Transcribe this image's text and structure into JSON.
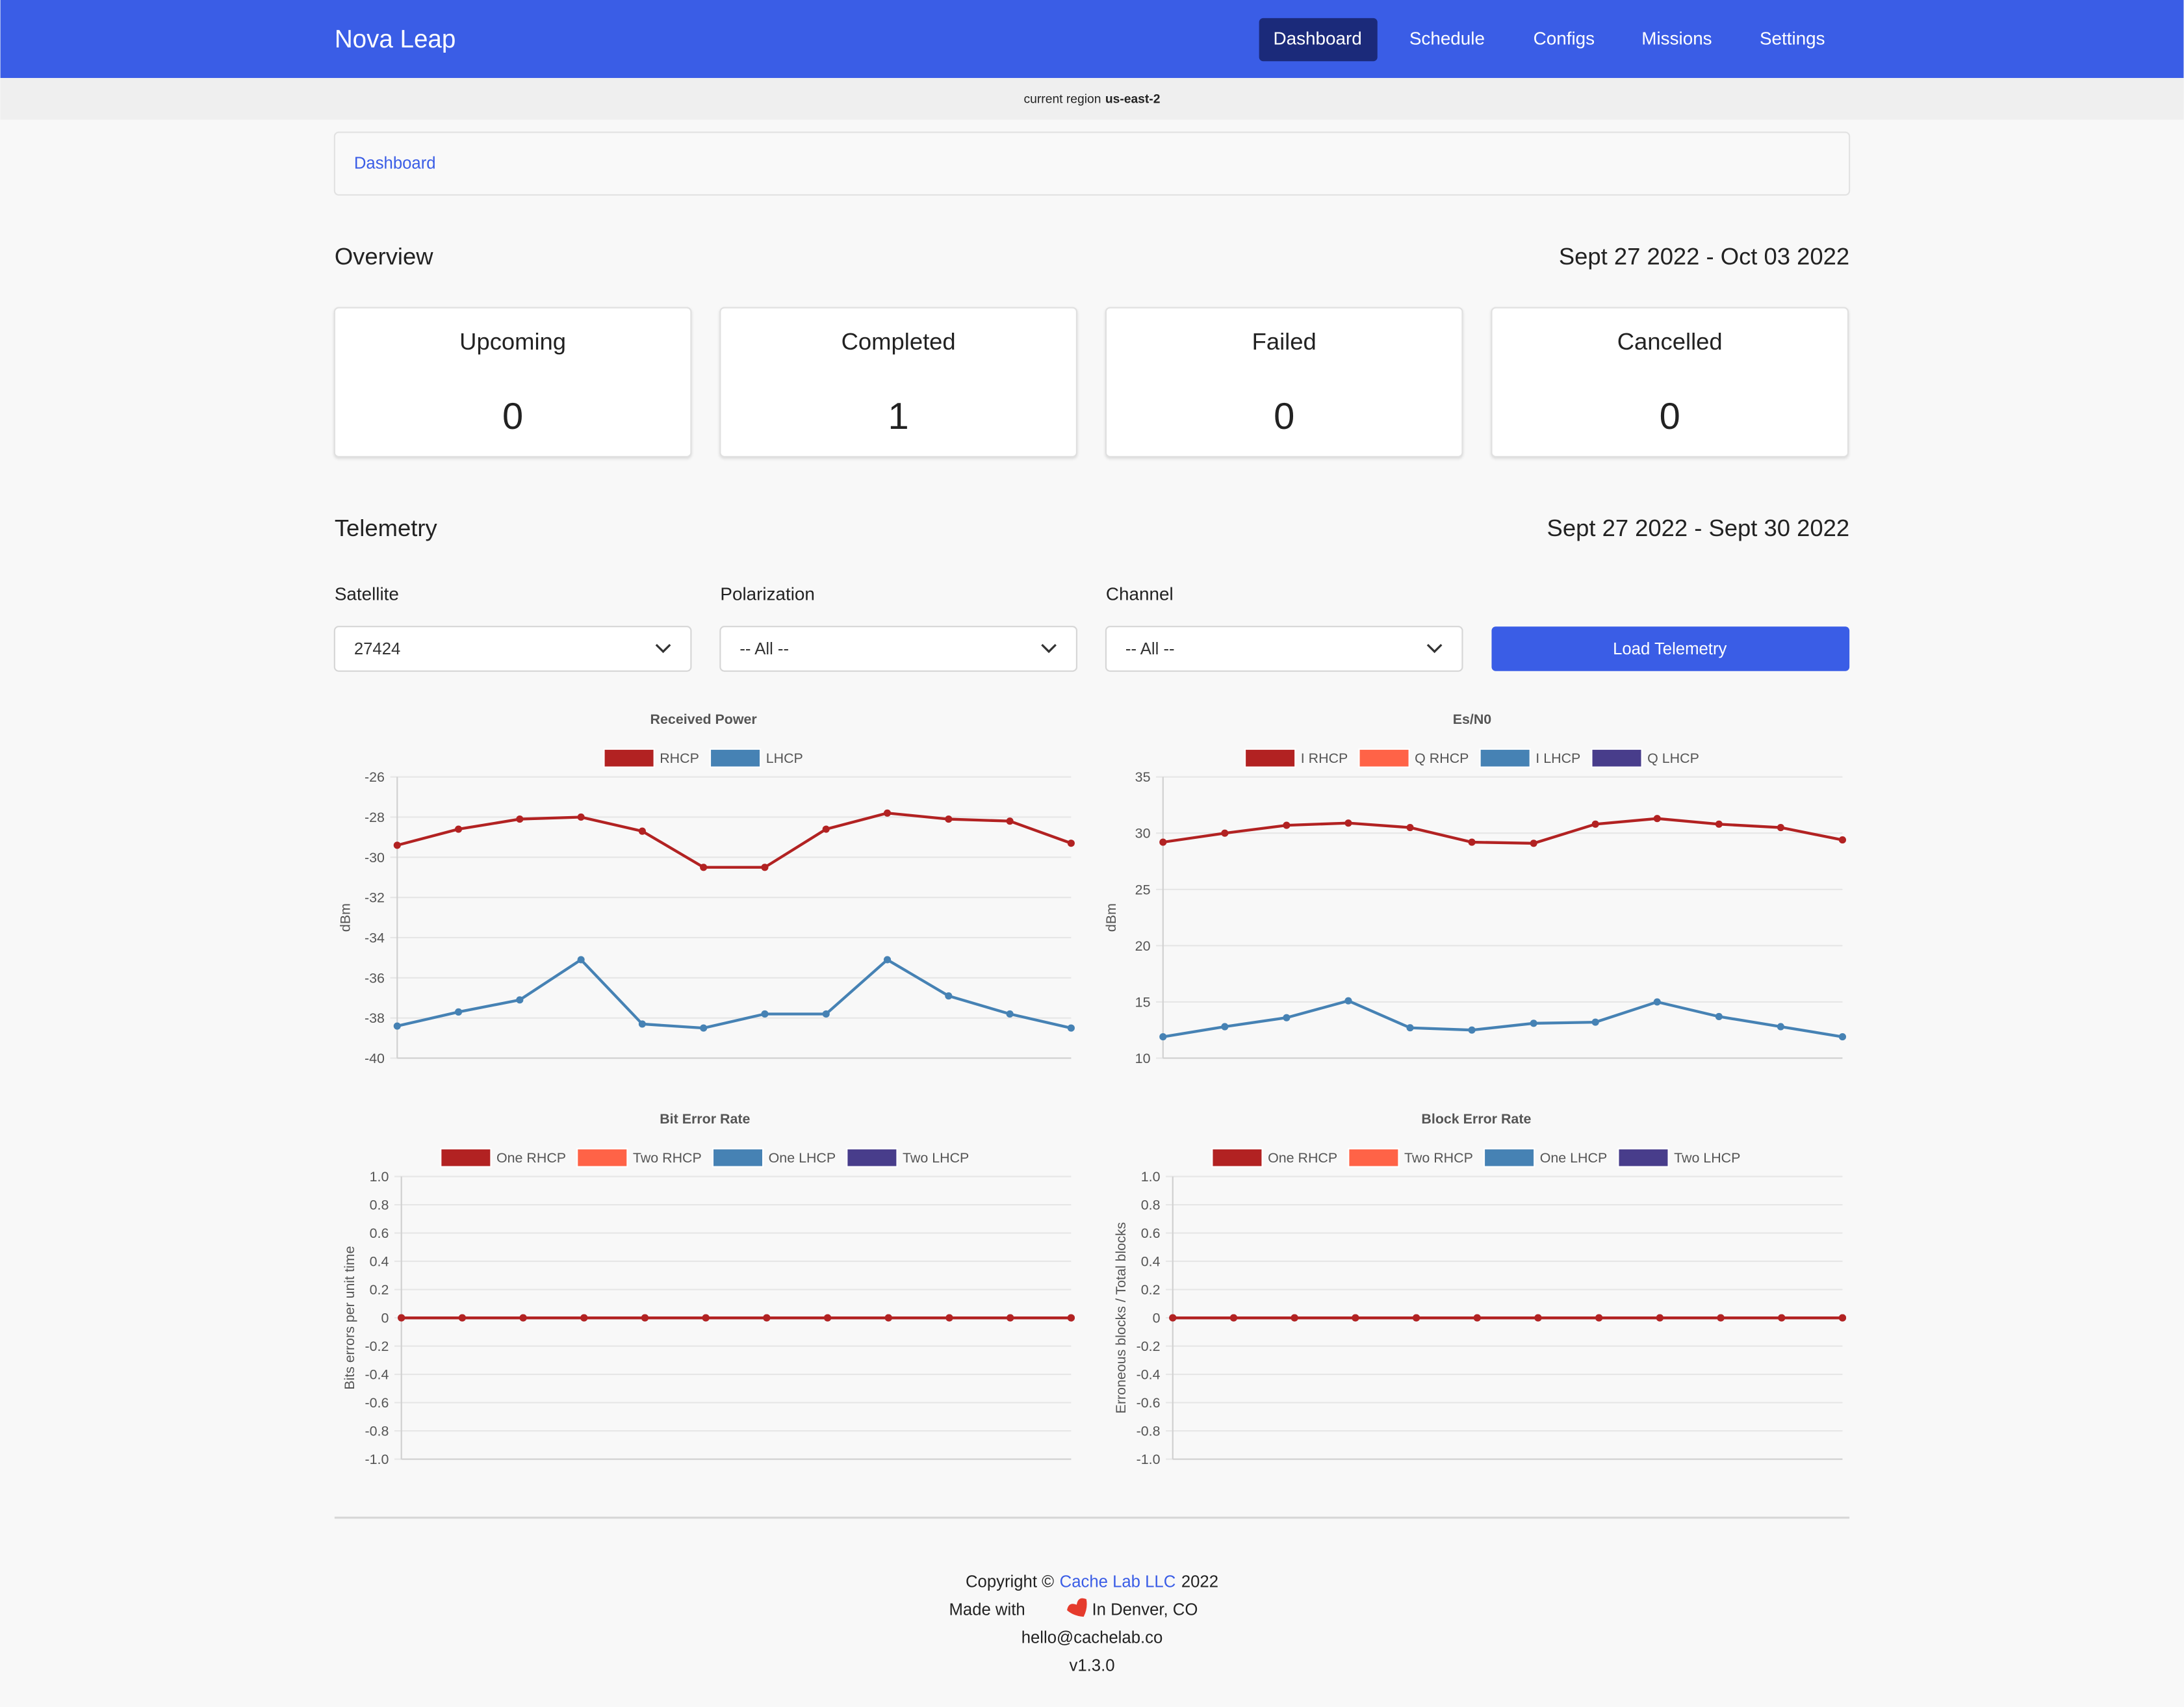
{
  "nav": {
    "brand": "Nova Leap",
    "items": [
      "Dashboard",
      "Schedule",
      "Configs",
      "Missions",
      "Settings"
    ]
  },
  "region": {
    "label": "current region",
    "value": "us-east-2"
  },
  "breadcrumb": "Dashboard",
  "overview": {
    "title": "Overview",
    "range": "Sept 27 2022 - Oct 03 2022",
    "cards": [
      {
        "label": "Upcoming",
        "value": "0"
      },
      {
        "label": "Completed",
        "value": "1"
      },
      {
        "label": "Failed",
        "value": "0"
      },
      {
        "label": "Cancelled",
        "value": "0"
      }
    ]
  },
  "telemetry": {
    "title": "Telemetry",
    "range": "Sept 27 2022 - Sept 30 2022",
    "filters": [
      {
        "label": "Satellite",
        "value": "27424"
      },
      {
        "label": "Polarization",
        "value": "-- All --"
      },
      {
        "label": "Channel",
        "value": "-- All --"
      }
    ],
    "button": "Load Telemetry"
  },
  "chart_data": [
    {
      "type": "line",
      "title": "Received Power",
      "y_label": "dBm",
      "ylim": [
        -40,
        -26
      ],
      "yticks": [
        -26,
        -28,
        -30,
        -32,
        -34,
        -36,
        -38,
        -40
      ],
      "grid": true,
      "series": [
        {
          "name": "RHCP",
          "color": "#b22222",
          "values": [
            -29.4,
            -28.6,
            -28.1,
            -28.0,
            -28.7,
            -30.5,
            -30.5,
            -28.6,
            -27.8,
            -28.1,
            -28.2,
            -29.3
          ]
        },
        {
          "name": "LHCP",
          "color": "#4682b4",
          "values": [
            -38.4,
            -37.7,
            -37.1,
            -35.1,
            -38.3,
            -38.5,
            -37.8,
            -37.8,
            -35.1,
            -36.9,
            -37.8,
            -38.5
          ]
        }
      ]
    },
    {
      "type": "line",
      "title": "Es/N0",
      "y_label": "dBm",
      "ylim": [
        10,
        35
      ],
      "yticks": [
        35,
        30,
        25,
        20,
        15,
        10
      ],
      "grid": true,
      "series": [
        {
          "name": "I RHCP",
          "color": "#b22222",
          "values": [
            29.2,
            30.0,
            30.7,
            30.9,
            30.5,
            29.2,
            29.1,
            30.8,
            31.3,
            30.8,
            30.5,
            29.4
          ]
        },
        {
          "name": "Q RHCP",
          "color": "#ff6347",
          "values": [
            null,
            null,
            null,
            null,
            null,
            null,
            null,
            null,
            null,
            null,
            null,
            null
          ]
        },
        {
          "name": "I LHCP",
          "color": "#4682b4",
          "values": [
            11.9,
            12.8,
            13.6,
            15.1,
            12.7,
            12.5,
            13.1,
            13.2,
            15.0,
            13.7,
            12.8,
            11.9
          ]
        },
        {
          "name": "Q LHCP",
          "color": "#483d8b",
          "values": [
            null,
            null,
            null,
            null,
            null,
            null,
            null,
            null,
            null,
            null,
            null,
            null
          ]
        }
      ]
    },
    {
      "type": "line",
      "title": "Bit Error Rate",
      "y_label": "Bits errors per unit time",
      "ylim": [
        -1,
        1
      ],
      "yticks": [
        {
          "value": 1,
          "label": "1.0"
        },
        0.8,
        0.6,
        0.4,
        0.2,
        0,
        -0.2,
        -0.4,
        -0.6,
        -0.8,
        {
          "value": -1,
          "label": "-1.0"
        }
      ],
      "grid": true,
      "series": [
        {
          "name": "One RHCP",
          "color": "#b22222",
          "values": [
            0,
            0,
            0,
            0,
            0,
            0,
            0,
            0,
            0,
            0,
            0,
            0
          ]
        },
        {
          "name": "Two RHCP",
          "color": "#ff6347",
          "values": [
            0,
            0,
            0,
            0,
            0,
            0,
            0,
            0,
            0,
            0,
            0,
            0
          ]
        },
        {
          "name": "One LHCP",
          "color": "#4682b4",
          "values": [
            0,
            0,
            0,
            0,
            0,
            0,
            0,
            0,
            0,
            0,
            0,
            0
          ]
        },
        {
          "name": "Two LHCP",
          "color": "#483d8b",
          "values": [
            0,
            0,
            0,
            0,
            0,
            0,
            0,
            0,
            0,
            0,
            0,
            0
          ]
        }
      ]
    },
    {
      "type": "line",
      "title": "Block Error Rate",
      "y_label": "Erroneous blocks / Total blocks",
      "ylim": [
        -1,
        1
      ],
      "yticks": [
        {
          "value": 1,
          "label": "1.0"
        },
        0.8,
        0.6,
        0.4,
        0.2,
        0,
        -0.2,
        -0.4,
        -0.6,
        -0.8,
        {
          "value": -1,
          "label": "-1.0"
        }
      ],
      "grid": true,
      "series": [
        {
          "name": "One RHCP",
          "color": "#b22222",
          "values": [
            0,
            0,
            0,
            0,
            0,
            0,
            0,
            0,
            0,
            0,
            0,
            0
          ]
        },
        {
          "name": "Two RHCP",
          "color": "#ff6347",
          "values": [
            0,
            0,
            0,
            0,
            0,
            0,
            0,
            0,
            0,
            0,
            0,
            0
          ]
        },
        {
          "name": "One LHCP",
          "color": "#4682b4",
          "values": [
            0,
            0,
            0,
            0,
            0,
            0,
            0,
            0,
            0,
            0,
            0,
            0
          ]
        },
        {
          "name": "Two LHCP",
          "color": "#483d8b",
          "values": [
            0,
            0,
            0,
            0,
            0,
            0,
            0,
            0,
            0,
            0,
            0,
            0
          ]
        }
      ]
    }
  ],
  "footer": {
    "copyright": "Copyright ©",
    "company": "Cache Lab LLC",
    "year": "2022",
    "made_with": "Made with",
    "location": "In Denver, CO",
    "email": "hello@cachelab.co",
    "version": "v1.3.0"
  }
}
